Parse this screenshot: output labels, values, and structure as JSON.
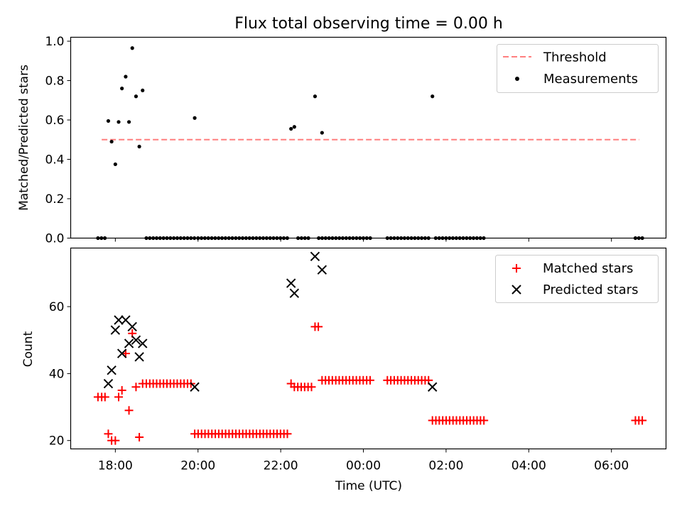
{
  "chart_data": [
    {
      "type": "scatter",
      "title": "Flux total observing time = 0.00 h",
      "xlabel": "",
      "ylabel": "Matched/Predicted stars",
      "xlim_hours": [
        16.92,
        31.32
      ],
      "ylim": [
        0,
        1.02
      ],
      "yticks": [
        "0.0",
        "0.2",
        "0.4",
        "0.6",
        "0.8",
        "1.0"
      ],
      "grid": false,
      "legend": {
        "position": "top-right",
        "entries": [
          {
            "label": "Threshold",
            "marker": "dashed-line",
            "color": "#ff7f7f"
          },
          {
            "label": "Measurements",
            "marker": "dot",
            "color": "#000000"
          }
        ]
      },
      "threshold": {
        "value": 0.5,
        "x_start_hours": 17.67,
        "x_end_hours": 30.67,
        "color": "#ff7f7f"
      },
      "measurements": {
        "nonzero": [
          {
            "t": 17.83,
            "v": 0.595
          },
          {
            "t": 17.91,
            "v": 0.49
          },
          {
            "t": 18.0,
            "v": 0.375
          },
          {
            "t": 18.08,
            "v": 0.59
          },
          {
            "t": 18.16,
            "v": 0.76
          },
          {
            "t": 18.25,
            "v": 0.82
          },
          {
            "t": 18.33,
            "v": 0.59
          },
          {
            "t": 18.41,
            "v": 0.965
          },
          {
            "t": 18.5,
            "v": 0.72
          },
          {
            "t": 18.58,
            "v": 0.465
          },
          {
            "t": 18.66,
            "v": 0.75
          },
          {
            "t": 19.92,
            "v": 0.61
          },
          {
            "t": 22.25,
            "v": 0.555
          },
          {
            "t": 22.33,
            "v": 0.565
          },
          {
            "t": 22.83,
            "v": 0.72
          },
          {
            "t": 23.0,
            "v": 0.535
          },
          {
            "t": 25.67,
            "v": 0.72
          }
        ],
        "zero_ranges": [
          {
            "from": 17.58,
            "to": 17.75,
            "step": 0.083
          },
          {
            "from": 18.75,
            "to": 19.92,
            "step": 0.083
          },
          {
            "from": 20.0,
            "to": 22.17,
            "step": 0.083
          },
          {
            "from": 22.42,
            "to": 22.75,
            "step": 0.083
          },
          {
            "from": 22.92,
            "to": 24.17,
            "step": 0.083
          },
          {
            "from": 24.58,
            "to": 25.58,
            "step": 0.083
          },
          {
            "from": 25.75,
            "to": 26.92,
            "step": 0.083
          },
          {
            "from": 30.58,
            "to": 30.75,
            "step": 0.083
          }
        ]
      }
    },
    {
      "type": "scatter",
      "title": "",
      "xlabel": "Time (UTC)",
      "ylabel": "Count",
      "xlim_hours": [
        16.92,
        31.32
      ],
      "ylim": [
        17.5,
        77.5
      ],
      "yticks": [
        "20",
        "40",
        "60"
      ],
      "xticks": [
        "18:00",
        "20:00",
        "22:00",
        "00:00",
        "02:00",
        "04:00",
        "06:00"
      ],
      "grid": false,
      "legend": {
        "position": "top-right",
        "entries": [
          {
            "label": "Matched stars",
            "marker": "plus",
            "color": "#ff0000"
          },
          {
            "label": "Predicted stars",
            "marker": "x",
            "color": "#000000"
          }
        ]
      },
      "matched": [
        {
          "t": 17.58,
          "v": 33
        },
        {
          "t": 17.67,
          "v": 33
        },
        {
          "t": 17.75,
          "v": 33
        },
        {
          "t": 17.83,
          "v": 22
        },
        {
          "t": 17.91,
          "v": 20
        },
        {
          "t": 18.0,
          "v": 20
        },
        {
          "t": 18.08,
          "v": 33
        },
        {
          "t": 18.16,
          "v": 35
        },
        {
          "t": 18.25,
          "v": 46
        },
        {
          "t": 18.33,
          "v": 29
        },
        {
          "t": 18.41,
          "v": 52
        },
        {
          "t": 18.5,
          "v": 36
        },
        {
          "t": 18.58,
          "v": 21
        },
        {
          "t": 18.66,
          "v": 37
        },
        {
          "t": 22.25,
          "v": 37
        },
        {
          "t": 22.83,
          "v": 54
        },
        {
          "t": 22.91,
          "v": 54
        }
      ],
      "matched_ranges": [
        {
          "from": 18.75,
          "to": 19.83,
          "step": 0.083,
          "value": 37
        },
        {
          "from": 19.92,
          "to": 22.17,
          "step": 0.083,
          "value": 22
        },
        {
          "from": 22.33,
          "to": 22.75,
          "step": 0.083,
          "value": 36
        },
        {
          "from": 23.0,
          "to": 24.17,
          "step": 0.083,
          "value": 38
        },
        {
          "from": 24.58,
          "to": 25.58,
          "step": 0.083,
          "value": 38
        },
        {
          "from": 25.67,
          "to": 26.92,
          "step": 0.083,
          "value": 26
        },
        {
          "from": 30.58,
          "to": 30.75,
          "step": 0.083,
          "value": 26
        }
      ],
      "predicted": [
        {
          "t": 17.83,
          "v": 37
        },
        {
          "t": 17.91,
          "v": 41
        },
        {
          "t": 18.0,
          "v": 53
        },
        {
          "t": 18.08,
          "v": 56
        },
        {
          "t": 18.16,
          "v": 46
        },
        {
          "t": 18.25,
          "v": 56
        },
        {
          "t": 18.33,
          "v": 49
        },
        {
          "t": 18.41,
          "v": 54
        },
        {
          "t": 18.5,
          "v": 50
        },
        {
          "t": 18.58,
          "v": 45
        },
        {
          "t": 18.66,
          "v": 49
        },
        {
          "t": 19.92,
          "v": 36
        },
        {
          "t": 22.25,
          "v": 67
        },
        {
          "t": 22.33,
          "v": 64
        },
        {
          "t": 22.83,
          "v": 75
        },
        {
          "t": 23.0,
          "v": 71
        },
        {
          "t": 25.67,
          "v": 36
        }
      ]
    }
  ]
}
